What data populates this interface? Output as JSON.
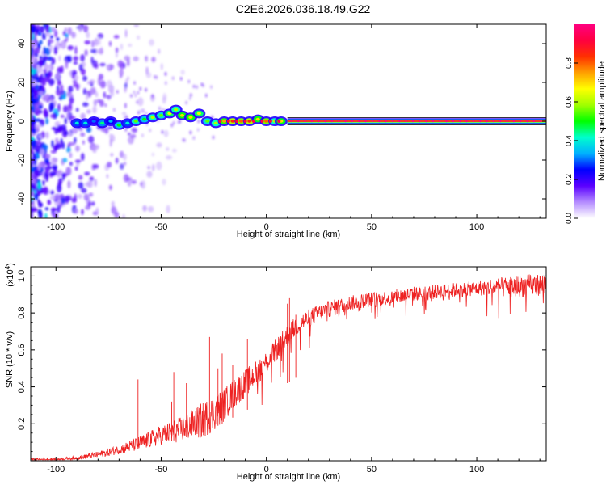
{
  "title": "C2E6.2026.036.18.49.G22",
  "chart_data": [
    {
      "type": "heatmap",
      "name": "spectrogram",
      "xlabel": "Height of straight line (km)",
      "ylabel": "Frequency (Hz)",
      "xlim": [
        -112,
        133
      ],
      "ylim": [
        -50,
        50
      ],
      "xticks": [
        -100,
        -50,
        0,
        50,
        100
      ],
      "yticks": [
        -40,
        -20,
        0,
        20,
        40
      ],
      "tick_labels_x": [
        "-100",
        "-50",
        "0",
        "50",
        "100"
      ],
      "tick_labels_y": [
        "-40",
        "-20",
        "0",
        "20",
        "40"
      ],
      "signal_line": {
        "frequency": 0,
        "x_start": 10,
        "x_end": 133,
        "amplitude": 1.0
      },
      "signal_blobs": [
        {
          "x": -90,
          "y": -1,
          "a": 0.4
        },
        {
          "x": -86,
          "y": -1,
          "a": 0.4
        },
        {
          "x": -82,
          "y": 0,
          "a": 0.3
        },
        {
          "x": -78,
          "y": -1,
          "a": 0.45
        },
        {
          "x": -74,
          "y": 0,
          "a": 0.35
        },
        {
          "x": -70,
          "y": -2,
          "a": 0.5
        },
        {
          "x": -66,
          "y": -1,
          "a": 0.4
        },
        {
          "x": -62,
          "y": 0,
          "a": 0.55
        },
        {
          "x": -58,
          "y": 1,
          "a": 0.5
        },
        {
          "x": -54,
          "y": 2,
          "a": 0.6
        },
        {
          "x": -50,
          "y": 3,
          "a": 0.55
        },
        {
          "x": -46,
          "y": 4,
          "a": 0.65
        },
        {
          "x": -43,
          "y": 6,
          "a": 0.6
        },
        {
          "x": -40,
          "y": 3,
          "a": 0.7
        },
        {
          "x": -36,
          "y": 2,
          "a": 0.7
        },
        {
          "x": -32,
          "y": 4,
          "a": 0.65
        },
        {
          "x": -28,
          "y": 0,
          "a": 0.55
        },
        {
          "x": -24,
          "y": -1,
          "a": 0.6
        },
        {
          "x": -20,
          "y": 0,
          "a": 0.75
        },
        {
          "x": -16,
          "y": 0,
          "a": 0.85
        },
        {
          "x": -12,
          "y": 0,
          "a": 0.8
        },
        {
          "x": -8,
          "y": 0,
          "a": 0.85
        },
        {
          "x": -4,
          "y": 1,
          "a": 0.7
        },
        {
          "x": 0,
          "y": 0,
          "a": 0.8
        },
        {
          "x": 4,
          "y": 0,
          "a": 0.6
        },
        {
          "x": 7,
          "y": 0,
          "a": 0.7
        }
      ],
      "colorbar": {
        "label": "Normalized spectral amplitude",
        "range": [
          0,
          1
        ],
        "ticks": [
          0.0,
          0.2,
          0.4,
          0.6,
          0.8
        ],
        "tick_labels": [
          "0.0",
          "0.2",
          "0.4",
          "0.6",
          "0.8"
        ],
        "colors": [
          "#ffffff",
          "#b48cff",
          "#5a00ff",
          "#0000ff",
          "#00b0ff",
          "#00ffcc",
          "#00ff00",
          "#a0ff00",
          "#ffff00",
          "#ffa000",
          "#ff3000",
          "#ff0040",
          "#ff0080"
        ]
      }
    },
    {
      "type": "line",
      "name": "snr",
      "xlabel": "Height of straight line (km)",
      "ylabel": "SNR (10 * v/v)",
      "y_multiplier": "(x10",
      "y_multiplier_exp": "4",
      "y_multiplier_close": ")",
      "xlim": [
        -112,
        133
      ],
      "ylim": [
        0,
        1.05
      ],
      "xticks": [
        -100,
        -50,
        0,
        50,
        100
      ],
      "yticks": [
        0.2,
        0.4,
        0.6,
        0.8,
        1.0
      ],
      "tick_labels_x": [
        "-100",
        "-50",
        "0",
        "50",
        "100"
      ],
      "tick_labels_y": [
        "0.2",
        "0.4",
        "0.6",
        "0.8",
        "1.0"
      ],
      "line_color": "#ee2222",
      "series": [
        {
          "name": "SNR",
          "x": [
            -112,
            -100,
            -90,
            -80,
            -70,
            -60,
            -50,
            -40,
            -35,
            -30,
            -25,
            -20,
            -15,
            -10,
            -5,
            0,
            5,
            10,
            15,
            20,
            25,
            30,
            40,
            50,
            60,
            70,
            80,
            90,
            100,
            110,
            120,
            133
          ],
          "y": [
            0.01,
            0.01,
            0.02,
            0.04,
            0.07,
            0.11,
            0.16,
            0.2,
            0.23,
            0.26,
            0.3,
            0.34,
            0.4,
            0.45,
            0.5,
            0.56,
            0.63,
            0.7,
            0.76,
            0.79,
            0.82,
            0.84,
            0.87,
            0.89,
            0.9,
            0.92,
            0.93,
            0.94,
            0.95,
            0.96,
            0.97,
            0.98
          ],
          "spread": [
            0.01,
            0.015,
            0.02,
            0.035,
            0.05,
            0.08,
            0.11,
            0.14,
            0.16,
            0.2,
            0.2,
            0.18,
            0.16,
            0.15,
            0.14,
            0.13,
            0.12,
            0.12,
            0.11,
            0.1,
            0.09,
            0.09,
            0.08,
            0.08,
            0.08,
            0.08,
            0.08,
            0.08,
            0.08,
            0.1,
            0.12,
            0.12
          ]
        }
      ],
      "spikes": [
        {
          "x": -61,
          "y": 0.44
        },
        {
          "x": -45,
          "y": 0.32
        },
        {
          "x": -44,
          "y": 0.48
        },
        {
          "x": -38,
          "y": 0.42
        },
        {
          "x": -27,
          "y": 0.67
        },
        {
          "x": -23,
          "y": 0.5
        },
        {
          "x": -21,
          "y": 0.58
        },
        {
          "x": -16,
          "y": 0.52
        },
        {
          "x": -9,
          "y": 0.66
        },
        {
          "x": 10,
          "y": 0.85
        },
        {
          "x": 11,
          "y": 0.88
        },
        {
          "x": 14,
          "y": 0.79
        }
      ]
    }
  ]
}
